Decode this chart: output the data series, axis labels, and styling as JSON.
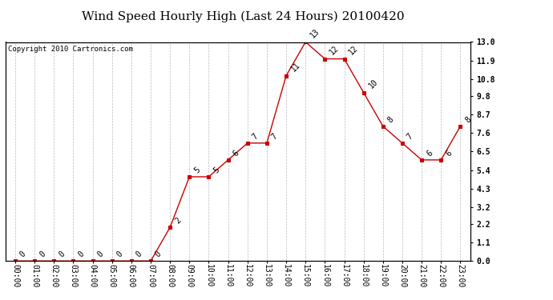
{
  "title": "Wind Speed Hourly High (Last 24 Hours) 20100420",
  "copyright_text": "Copyright 2010 Cartronics.com",
  "hours": [
    "00:00",
    "01:00",
    "02:00",
    "03:00",
    "04:00",
    "05:00",
    "06:00",
    "07:00",
    "08:00",
    "09:00",
    "10:00",
    "11:00",
    "12:00",
    "13:00",
    "14:00",
    "15:00",
    "16:00",
    "17:00",
    "18:00",
    "19:00",
    "20:00",
    "21:00",
    "22:00",
    "23:00"
  ],
  "values": [
    0,
    0,
    0,
    0,
    0,
    0,
    0,
    0,
    2,
    5,
    5,
    6,
    7,
    7,
    11,
    13,
    12,
    12,
    10,
    8,
    7,
    6,
    6,
    8
  ],
  "line_color": "#cc0000",
  "marker_color": "#cc0000",
  "background_color": "#ffffff",
  "grid_color": "#bbbbbb",
  "ylim_min": 0.0,
  "ylim_max": 13.0,
  "yticks_right": [
    0.0,
    1.1,
    2.2,
    3.2,
    4.3,
    5.4,
    6.5,
    7.6,
    8.7,
    9.8,
    10.8,
    11.9,
    13.0
  ],
  "title_fontsize": 11,
  "label_fontsize": 7,
  "annotation_fontsize": 7,
  "copyright_fontsize": 6.5
}
